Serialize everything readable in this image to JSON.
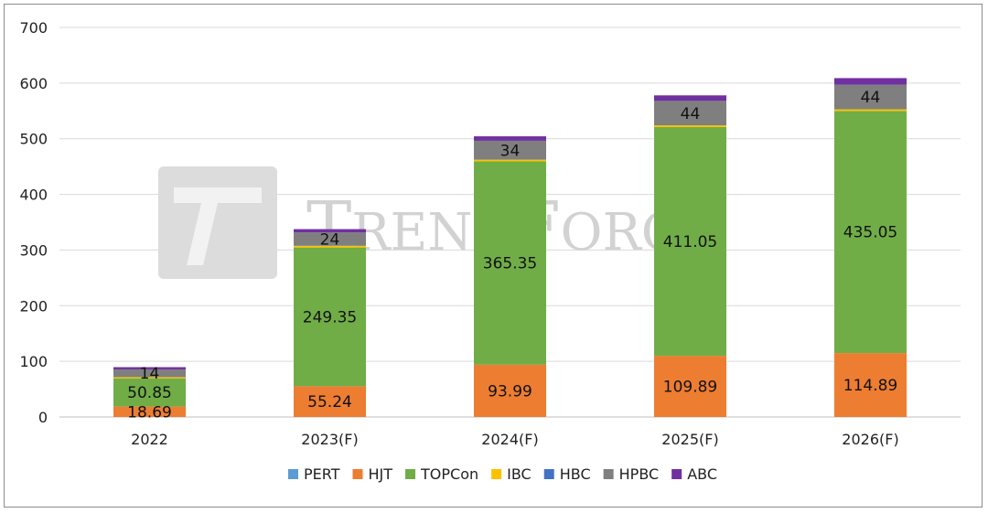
{
  "chart_data": {
    "type": "bar",
    "stacked": true,
    "categories": [
      "2022",
      "2023(F)",
      "2024(F)",
      "2025(F)",
      "2026(F)"
    ],
    "ylim": [
      0,
      700
    ],
    "yticks": [
      0,
      100,
      200,
      300,
      400,
      500,
      600,
      700
    ],
    "grid": true,
    "legend_position": "bottom",
    "series": [
      {
        "name": "PERT",
        "color": "#5b9bd5",
        "values": [
          0,
          0,
          0,
          0,
          0
        ],
        "labels": [
          "",
          "",
          "",
          "",
          ""
        ]
      },
      {
        "name": "HJT",
        "color": "#ed7d31",
        "values": [
          18.69,
          55.24,
          93.99,
          109.89,
          114.89
        ],
        "labels": [
          "18.69",
          "55.24",
          "93.99",
          "109.89",
          "114.89"
        ]
      },
      {
        "name": "TOPCon",
        "color": "#70ad47",
        "values": [
          50.85,
          249.35,
          365.35,
          411.05,
          435.05
        ],
        "labels": [
          "50.85",
          "249.35",
          "365.35",
          "411.05",
          "435.05"
        ]
      },
      {
        "name": "IBC",
        "color": "#ffc000",
        "values": [
          2,
          3,
          3,
          3,
          3
        ],
        "labels": [
          "",
          "",
          "",
          "",
          ""
        ]
      },
      {
        "name": "HBC",
        "color": "#4472c4",
        "values": [
          0,
          0,
          0,
          0,
          0
        ],
        "labels": [
          "",
          "",
          "",
          "",
          ""
        ]
      },
      {
        "name": "HPBC",
        "color": "#7f7f7f",
        "values": [
          14,
          24,
          34,
          44,
          44
        ],
        "labels": [
          "14",
          "24",
          "34",
          "44",
          "44"
        ]
      },
      {
        "name": "ABC",
        "color": "#7030a0",
        "values": [
          4,
          6,
          8,
          10,
          12
        ],
        "labels": [
          "",
          "",
          "",
          "",
          ""
        ]
      }
    ],
    "watermark": "TRENDFORCE"
  }
}
